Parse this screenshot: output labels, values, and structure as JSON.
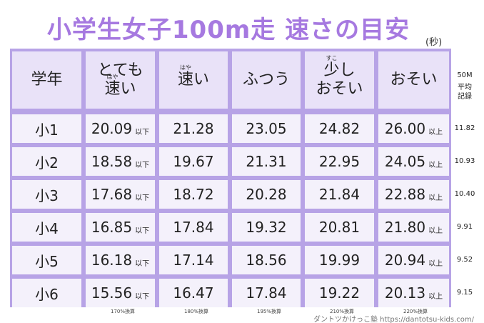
{
  "title": "小学生女子100m走 速さの目安",
  "unit": "(秒)",
  "header": [
    {
      "text": "学年"
    },
    {
      "line1": "とても",
      "base": "速",
      "ruby": "はや",
      "tail": "い"
    },
    {
      "base": "速",
      "ruby": "はや",
      "tail": "い"
    },
    {
      "text": "ふつう"
    },
    {
      "base": "少",
      "ruby": "すこ",
      "tail": "し",
      "line2": "おそい"
    },
    {
      "text": "おそい"
    }
  ],
  "side_header": [
    "50M",
    "平均",
    "記録"
  ],
  "rows": [
    {
      "grade": "小1",
      "cells": [
        {
          "value": "20.09",
          "note": "以下"
        },
        {
          "value": "21.28"
        },
        {
          "value": "23.05"
        },
        {
          "value": "24.82"
        },
        {
          "value": "26.00",
          "note": "以上"
        }
      ],
      "average": "11.82"
    },
    {
      "grade": "小2",
      "cells": [
        {
          "value": "18.58",
          "note": "以下"
        },
        {
          "value": "19.67"
        },
        {
          "value": "21.31"
        },
        {
          "value": "22.95"
        },
        {
          "value": "24.05",
          "note": "以上"
        }
      ],
      "average": "10.93"
    },
    {
      "grade": "小3",
      "cells": [
        {
          "value": "17.68",
          "note": "以下"
        },
        {
          "value": "18.72"
        },
        {
          "value": "20.28"
        },
        {
          "value": "21.84"
        },
        {
          "value": "22.88",
          "note": "以上"
        }
      ],
      "average": "10.40"
    },
    {
      "grade": "小4",
      "cells": [
        {
          "value": "16.85",
          "note": "以下"
        },
        {
          "value": "17.84"
        },
        {
          "value": "19.32"
        },
        {
          "value": "20.81"
        },
        {
          "value": "21.80",
          "note": "以上"
        }
      ],
      "average": "9.91"
    },
    {
      "grade": "小5",
      "cells": [
        {
          "value": "16.18",
          "note": "以下"
        },
        {
          "value": "17.14"
        },
        {
          "value": "18.56"
        },
        {
          "value": "19.99"
        },
        {
          "value": "20.94",
          "note": "以上"
        }
      ],
      "average": "9.52"
    },
    {
      "grade": "小6",
      "cells": [
        {
          "value": "15.56",
          "note": "以下"
        },
        {
          "value": "16.47"
        },
        {
          "value": "17.84"
        },
        {
          "value": "19.22"
        },
        {
          "value": "20.13",
          "note": "以上"
        }
      ],
      "average": "9.15"
    }
  ],
  "conversions": [
    "170%換算",
    "180%換算",
    "195%換算",
    "210%換算",
    "220%換算"
  ],
  "credit": "ダントツかけっこ塾 https://dantotsu-kids.com/"
}
